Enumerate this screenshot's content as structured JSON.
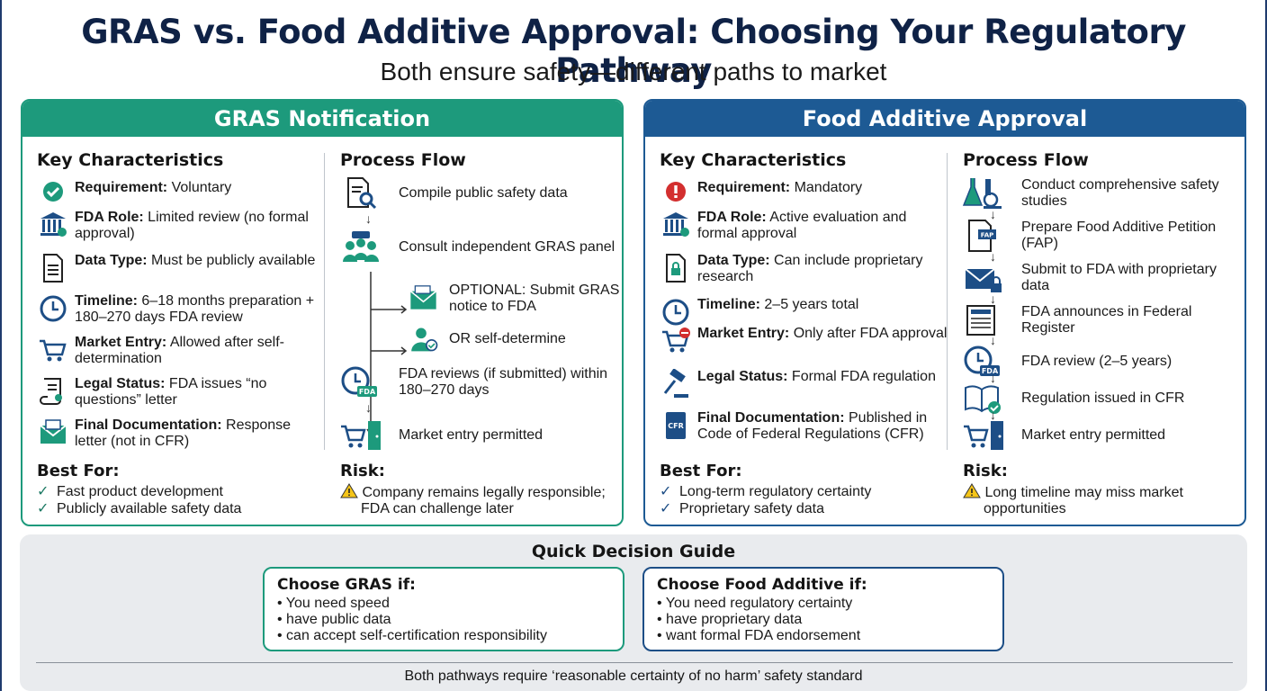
{
  "title": "GRAS vs. Food Additive Approval: Choosing Your Regulatory Pathway",
  "subtitle": "Both ensure safety—different paths to market",
  "colors": {
    "gras": "#1d9a7c",
    "fa": "#1d5a94",
    "warning": "#f5c518",
    "alert": "#d32f2f"
  },
  "gras": {
    "header": "GRAS Notification",
    "characteristics_title": "Key Characteristics",
    "characteristics": [
      {
        "icon": "check-circle-icon",
        "label": "Requirement:",
        "text": " Voluntary"
      },
      {
        "icon": "government-building-icon",
        "label": "FDA Role:",
        "text": " Limited review (no formal approval)"
      },
      {
        "icon": "document-icon",
        "label": "Data Type:",
        "text": " Must be publicly available"
      },
      {
        "icon": "clock-icon",
        "label": "Timeline:",
        "text": " 6–18 months preparation + 180–270 days FDA review"
      },
      {
        "icon": "cart-icon",
        "label": "Market Entry:",
        "text": " Allowed after self-determination"
      },
      {
        "icon": "scroll-icon",
        "label": "Legal Status:",
        "text": " FDA issues “no questions” letter"
      },
      {
        "icon": "envelope-icon",
        "label": "Final Documentation:",
        "text": " Response letter (not in CFR)"
      }
    ],
    "process_title": "Process Flow",
    "process": [
      {
        "icon": "document-search-icon",
        "text": "Compile public safety data"
      },
      {
        "icon": "panel-group-icon",
        "text": "Consult independent GRAS panel"
      },
      {
        "icon": "envelope-fda-icon",
        "text": "OPTIONAL: Submit GRAS notice to FDA"
      },
      {
        "icon": "person-check-icon",
        "text": "OR self-determine"
      },
      {
        "icon": "clock-fda-icon",
        "text": "FDA reviews (if submitted) within 180–270 days"
      },
      {
        "icon": "cart-door-icon",
        "text": "Market entry permitted"
      }
    ],
    "best_for_title": "Best For:",
    "best_for": [
      "Fast product development",
      "Publicly available safety data"
    ],
    "risk_title": "Risk:",
    "risk": [
      "Company remains legally responsible;",
      "FDA can challenge later"
    ]
  },
  "fa": {
    "header": "Food Additive Approval",
    "characteristics_title": "Key Characteristics",
    "characteristics": [
      {
        "icon": "alert-circle-icon",
        "label": "Requirement:",
        "text": " Mandatory"
      },
      {
        "icon": "government-building-icon",
        "label": "FDA Role:",
        "text": " Active evaluation and formal approval"
      },
      {
        "icon": "lock-document-icon",
        "label": "Data Type:",
        "text": " Can include proprietary research"
      },
      {
        "icon": "clock-icon",
        "label": "Timeline:",
        "text": " 2–5 years total"
      },
      {
        "icon": "cart-blocked-icon",
        "label": "Market Entry:",
        "text": " Only after FDA approval"
      },
      {
        "icon": "gavel-icon",
        "label": "Legal Status:",
        "text": " Formal FDA regulation"
      },
      {
        "icon": "cfr-book-icon",
        "label": "Final Documentation:",
        "text": " Published in Code of Federal Regulations (CFR)"
      }
    ],
    "process_title": "Process Flow",
    "process": [
      {
        "icon": "lab-flask-icon",
        "text": "Conduct comprehensive safety studies"
      },
      {
        "icon": "fap-document-icon",
        "text": "Prepare Food Additive Petition (FAP)"
      },
      {
        "icon": "envelope-lock-icon",
        "text": "Submit to FDA with proprietary data"
      },
      {
        "icon": "newspaper-icon",
        "text": "FDA announces in Federal Register"
      },
      {
        "icon": "clock-fda-icon",
        "text": "FDA review (2–5 years)"
      },
      {
        "icon": "book-check-icon",
        "text": "Regulation issued in CFR"
      },
      {
        "icon": "cart-door-icon",
        "text": "Market entry permitted"
      }
    ],
    "best_for_title": "Best For:",
    "best_for": [
      "Long-term regulatory certainty",
      "Proprietary safety data"
    ],
    "risk_title": "Risk:",
    "risk": [
      "Long timeline may miss market",
      "opportunities"
    ]
  },
  "guide": {
    "title": "Quick Decision Guide",
    "gras_title": "Choose GRAS if:",
    "gras_items": [
      "• You need speed",
      "• have public data",
      "• can accept self-certification responsibility"
    ],
    "fa_title": "Choose Food Additive if:",
    "fa_items": [
      "• You need regulatory certainty",
      "• have proprietary data",
      "• want formal FDA endorsement"
    ],
    "footer": "Both pathways require ‘reasonable certainty of no harm’ safety standard"
  },
  "check_mark": "✓"
}
